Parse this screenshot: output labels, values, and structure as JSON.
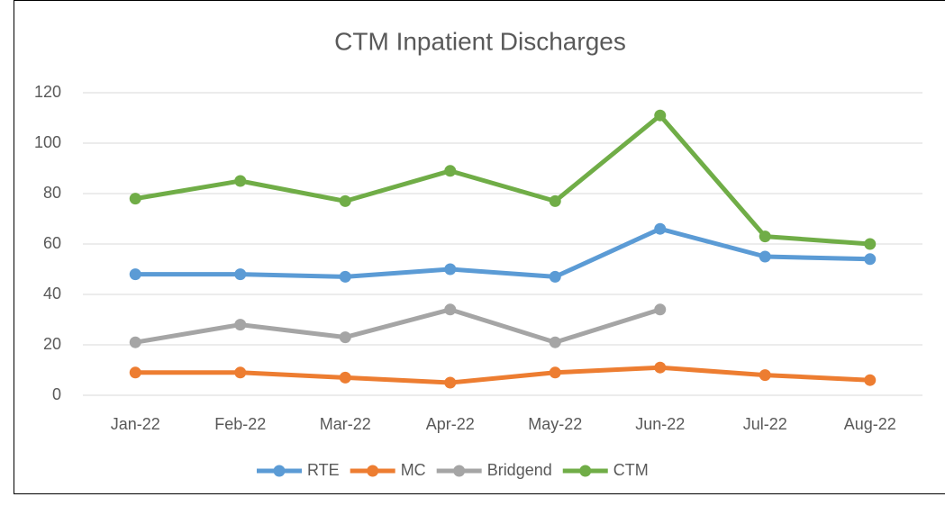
{
  "chart_data": {
    "type": "line",
    "title": "CTM Inpatient Discharges",
    "categories": [
      "Jan-22",
      "Feb-22",
      "Mar-22",
      "Apr-22",
      "May-22",
      "Jun-22",
      "Jul-22",
      "Aug-22"
    ],
    "series": [
      {
        "name": "RTE",
        "color": "#5b9bd5",
        "values": [
          48,
          48,
          47,
          50,
          47,
          66,
          55,
          54
        ]
      },
      {
        "name": "MC",
        "color": "#ed7d31",
        "values": [
          9,
          9,
          7,
          5,
          9,
          11,
          8,
          6
        ]
      },
      {
        "name": "Bridgend",
        "color": "#a5a5a5",
        "values": [
          21,
          28,
          23,
          34,
          21,
          34,
          null,
          null
        ]
      },
      {
        "name": "CTM",
        "color": "#70ad47",
        "values": [
          78,
          85,
          77,
          89,
          77,
          111,
          63,
          60
        ]
      }
    ],
    "ylim": [
      0,
      120
    ],
    "yticks": [
      0,
      20,
      40,
      60,
      80,
      100,
      120
    ],
    "grid": true,
    "legend": "bottom"
  }
}
